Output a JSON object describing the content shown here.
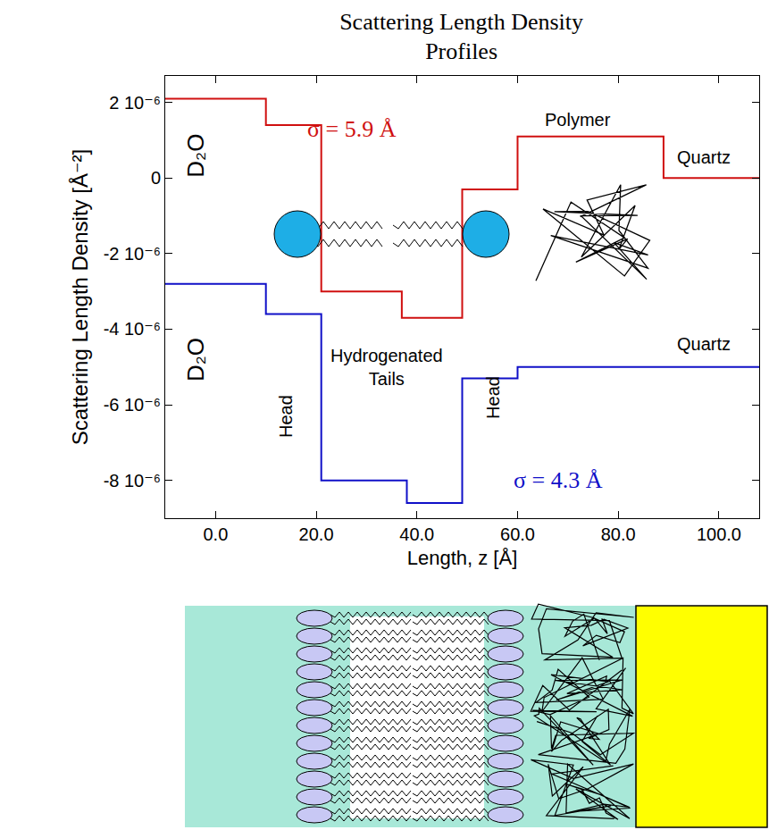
{
  "chart_data": {
    "type": "line",
    "title": "Scattering Length Density Profiles",
    "x_label": "Length, z [Å]",
    "y_label": "Scattering Length Density [Å⁻²]",
    "xlim": [
      -10,
      108
    ],
    "xticks": [
      {
        "value": 0,
        "label": "0.0"
      },
      {
        "value": 20,
        "label": "20.0"
      },
      {
        "value": 40,
        "label": "40.0"
      },
      {
        "value": 60,
        "label": "60.0"
      },
      {
        "value": 80,
        "label": "80.0"
      },
      {
        "value": 100,
        "label": "100.0"
      }
    ],
    "ylim": [
      -9e-06,
      2.7e-06
    ],
    "yticks": [
      {
        "value": 2e-06,
        "label": "2 10⁻⁶"
      },
      0,
      {
        "value": -2e-06,
        "label": "-2 10⁻⁶"
      },
      {
        "value": -4e-06,
        "label": "-4 10⁻⁶"
      },
      {
        "value": -6e-06,
        "label": "-6 10⁻⁶"
      },
      {
        "value": -8e-06,
        "label": "-8 10⁻⁶"
      }
    ],
    "grid": false,
    "series": [
      {
        "color": "#d01010",
        "line_style": "step",
        "x": [
          -10,
          10,
          21,
          37,
          49,
          60,
          89,
          108
        ],
        "values": [
          2.1e-06,
          1.4e-06,
          -3e-06,
          -3.7e-06,
          -3e-07,
          1.1e-06,
          0,
          0
        ]
      },
      {
        "color": "#1010c8",
        "line_style": "step",
        "x": [
          -10,
          10,
          21,
          38,
          49,
          60,
          108
        ],
        "values": [
          -2.8e-06,
          -3.6e-06,
          -8e-06,
          -8.6e-06,
          -5.3e-06,
          -5e-06,
          -5e-06
        ]
      }
    ],
    "annotations": [
      {
        "text": "σ = 5.9 Å",
        "x": 27,
        "y": 1.3e-06,
        "color": "#d01010"
      },
      {
        "text": "Polymer",
        "x": 72,
        "y": 1.55e-06
      },
      {
        "text": "Quartz",
        "x": 97,
        "y": 5.5e-07
      },
      {
        "text": "D₂O",
        "x": -4,
        "y": 6e-07
      },
      {
        "text": "D₂O",
        "x": -4,
        "y": -4.8e-06
      },
      {
        "text": "Hydrogenated Tails",
        "x": 34,
        "y": -5e-06
      },
      {
        "text": "Head",
        "x": 14,
        "y": -6.3e-06
      },
      {
        "text": "Head",
        "x": 55,
        "y": -5.8e-06
      },
      {
        "text": "Quartz",
        "x": 97,
        "y": -4.4e-06
      },
      {
        "text": "σ = 4.3 Å",
        "x": 68,
        "y": -8e-06,
        "color": "#1010c8"
      }
    ]
  }
}
